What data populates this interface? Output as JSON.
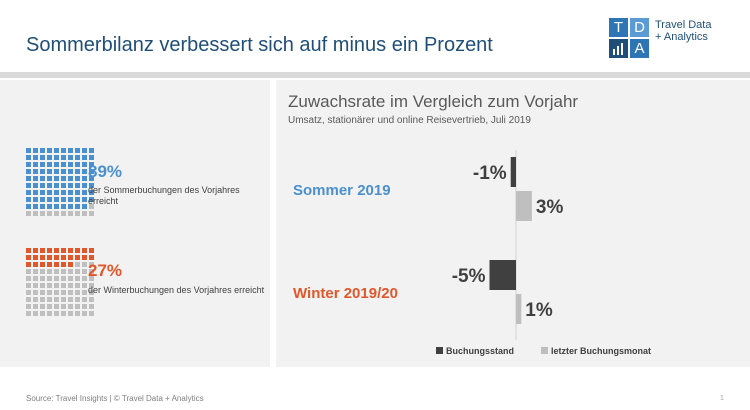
{
  "header": {
    "title": "Sommerbilanz verbessert sich auf minus ein Prozent"
  },
  "logo": {
    "letters": [
      "T",
      "D",
      "",
      "A"
    ],
    "text_line1": "Travel Data",
    "text_line2": "+ Analytics"
  },
  "colors": {
    "sommer": "#4a90d0",
    "winter": "#e0572b",
    "grey_square": "#bfbfbf",
    "buchungsstand": "#404040",
    "letzter_buchungsmonat": "#bfbfbf",
    "logo_dark": "#1f4e79",
    "logo_mid": "#2e75b6",
    "logo_light": "#5b9bd5"
  },
  "left": {
    "sommer": {
      "pct": "89%",
      "desc": "der Sommerbuchungen des Vorjahres erreicht",
      "filled_fraction": 0.89
    },
    "winter": {
      "pct": "27%",
      "desc": "der Winterbuchungen des Vorjahres erreicht",
      "filled_fraction": 0.27
    }
  },
  "chart_data": {
    "type": "bar",
    "orientation": "horizontal",
    "title": "Zuwachsrate im Vergleich zum Vorjahr",
    "subtitle": "Umsatz, stationärer und online Reisevertrieb, Juli 2019",
    "categories": [
      "Sommer 2019",
      "Winter 2019/20"
    ],
    "series": [
      {
        "name": "Buchungsstand",
        "values": [
          -1,
          -5
        ],
        "labels": [
          "-1%",
          "-5%"
        ]
      },
      {
        "name": "letzter Buchungsmonat",
        "values": [
          3,
          1
        ],
        "labels": [
          "3%",
          "1%"
        ]
      }
    ],
    "unit": "%",
    "legend_position": "bottom",
    "grid": false
  },
  "footer": {
    "source": "Source: Travel Insights  |  © Travel Data + Analytics",
    "page": "1"
  }
}
